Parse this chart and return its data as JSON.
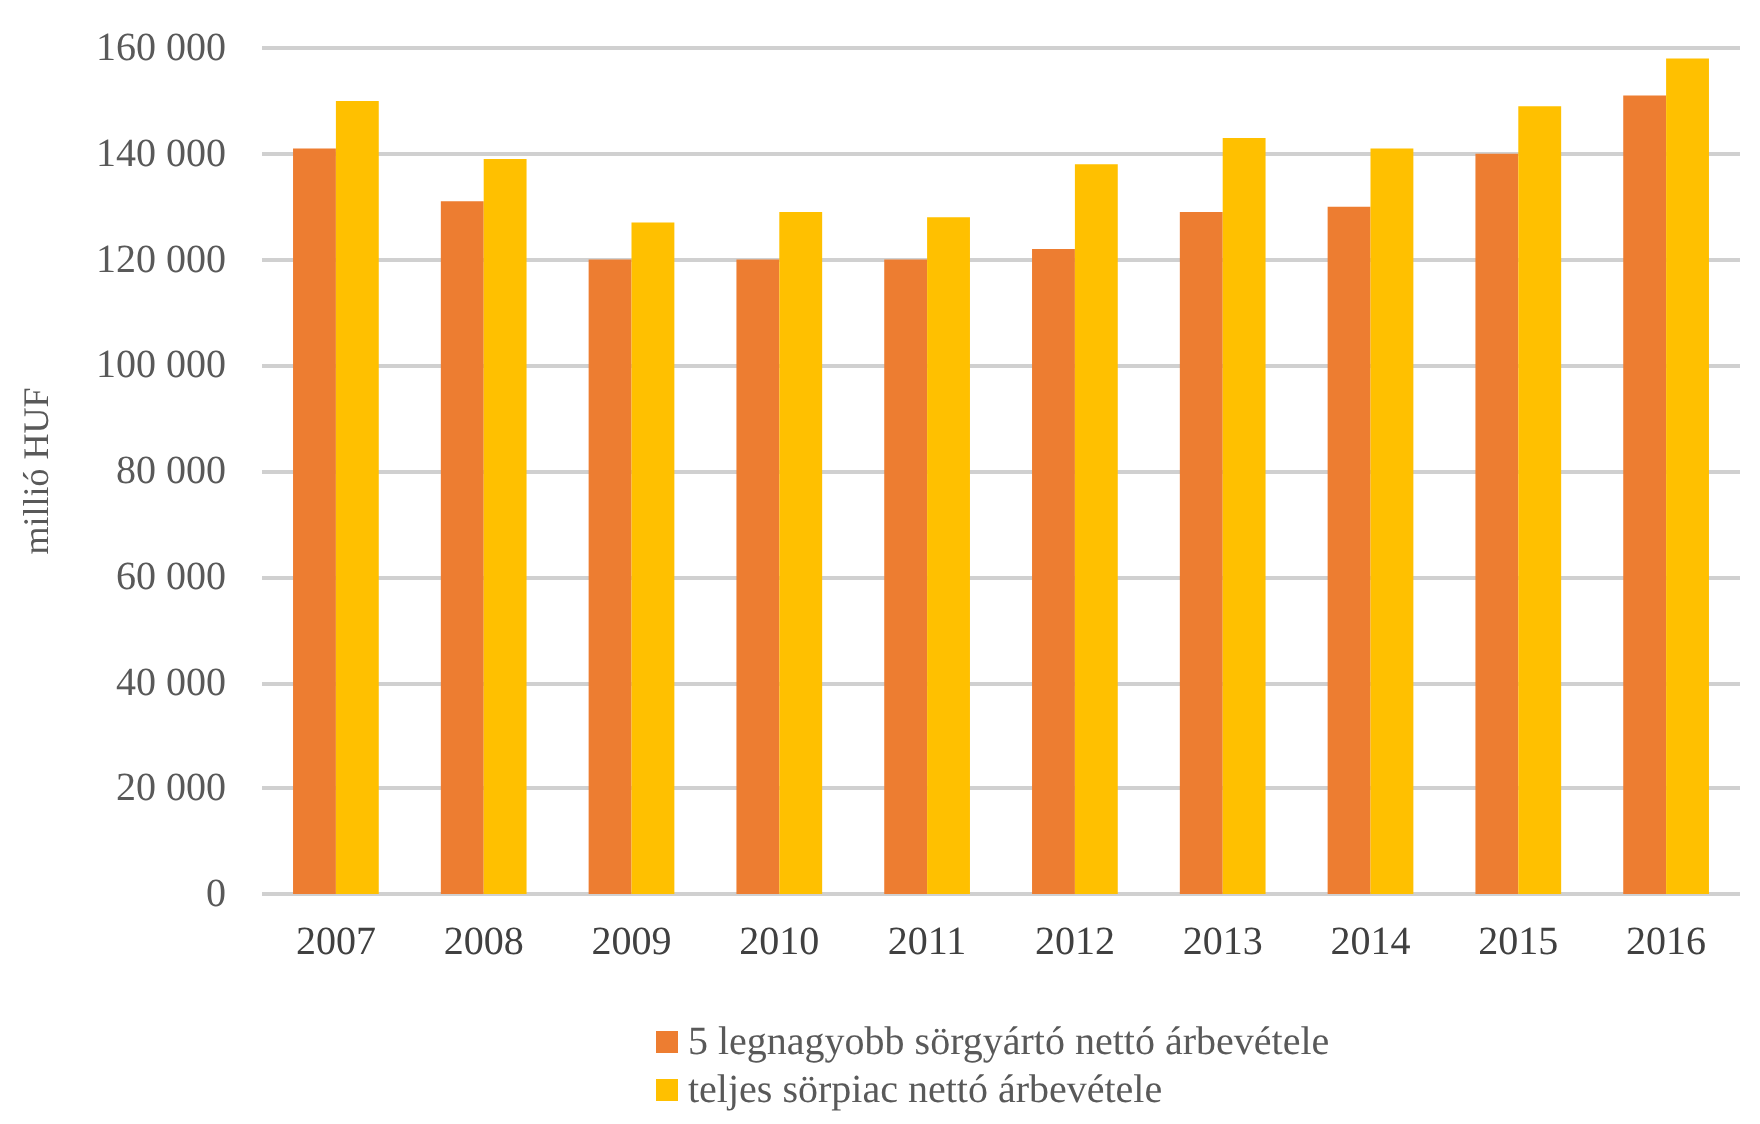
{
  "chart_data": {
    "type": "bar",
    "ylabel": "millió HUF",
    "categories": [
      "2007",
      "2008",
      "2009",
      "2010",
      "2011",
      "2012",
      "2013",
      "2014",
      "2015",
      "2016"
    ],
    "series": [
      {
        "name": "5 legnagyobb sörgyártó nettó árbevétele",
        "color": "#ed7d31",
        "values": [
          141000,
          131000,
          120000,
          120000,
          120000,
          122000,
          129000,
          130000,
          140000,
          151000
        ]
      },
      {
        "name": "teljes sörpiac nettó árbevétele",
        "color": "#ffc000",
        "values": [
          150000,
          139000,
          127000,
          129000,
          128000,
          138000,
          143000,
          141000,
          149000,
          158000
        ]
      }
    ],
    "ylim": [
      0,
      160000
    ],
    "yticks": [
      0,
      {
        "value": 20000,
        "label": "20 000"
      },
      {
        "value": 40000,
        "label": "40 000"
      },
      {
        "value": 60000,
        "label": "60 000"
      },
      {
        "value": 80000,
        "label": "80 000"
      },
      {
        "value": 100000,
        "label": "100 000"
      },
      {
        "value": 120000,
        "label": "120 000"
      },
      {
        "value": 140000,
        "label": "140 000"
      },
      {
        "value": 160000,
        "label": "160 000"
      }
    ],
    "grid": "y",
    "legend": "bottom"
  }
}
